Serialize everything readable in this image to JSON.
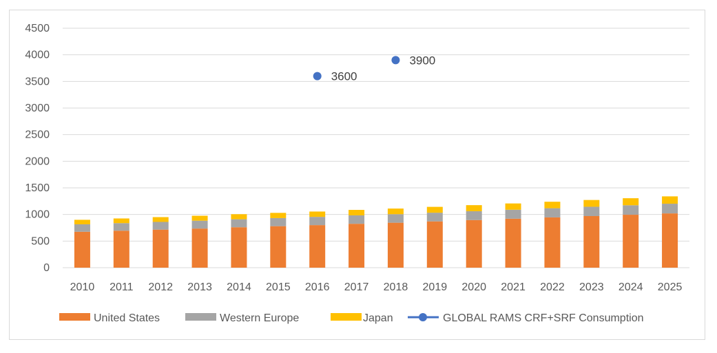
{
  "chart_data": {
    "type": "bar",
    "stacked": true,
    "categories": [
      "2010",
      "2011",
      "2012",
      "2013",
      "2014",
      "2015",
      "2016",
      "2017",
      "2018",
      "2019",
      "2020",
      "2021",
      "2022",
      "2023",
      "2024",
      "2025"
    ],
    "series": [
      {
        "name": "United States",
        "kind": "bar",
        "color": "#ED7D31",
        "values": [
          675,
          695,
          715,
          735,
          760,
          780,
          800,
          825,
          845,
          870,
          895,
          920,
          945,
          970,
          995,
          1020
        ]
      },
      {
        "name": "Western Europe",
        "kind": "bar",
        "color": "#A5A5A5",
        "values": [
          140,
          142,
          145,
          148,
          150,
          152,
          155,
          158,
          160,
          163,
          166,
          169,
          172,
          175,
          178,
          182
        ]
      },
      {
        "name": "Japan",
        "kind": "bar",
        "color": "#FFC000",
        "values": [
          85,
          88,
          90,
          93,
          95,
          98,
          100,
          103,
          106,
          110,
          114,
          118,
          122,
          127,
          132,
          138
        ]
      },
      {
        "name": "GLOBAL RAMS CRF+SRF Consumption",
        "kind": "scatter",
        "color": "#4472C4",
        "points": [
          {
            "x": "2016",
            "y": 3600,
            "label": "3600"
          },
          {
            "x": "2018",
            "y": 3900,
            "label": "3900"
          }
        ]
      }
    ],
    "ylim": [
      0,
      4500
    ],
    "yticks": [
      0,
      500,
      1000,
      1500,
      2000,
      2500,
      3000,
      3500,
      4000,
      4500
    ],
    "grid": true,
    "legend_position": "bottom",
    "title": "",
    "xlabel": "",
    "ylabel": ""
  }
}
